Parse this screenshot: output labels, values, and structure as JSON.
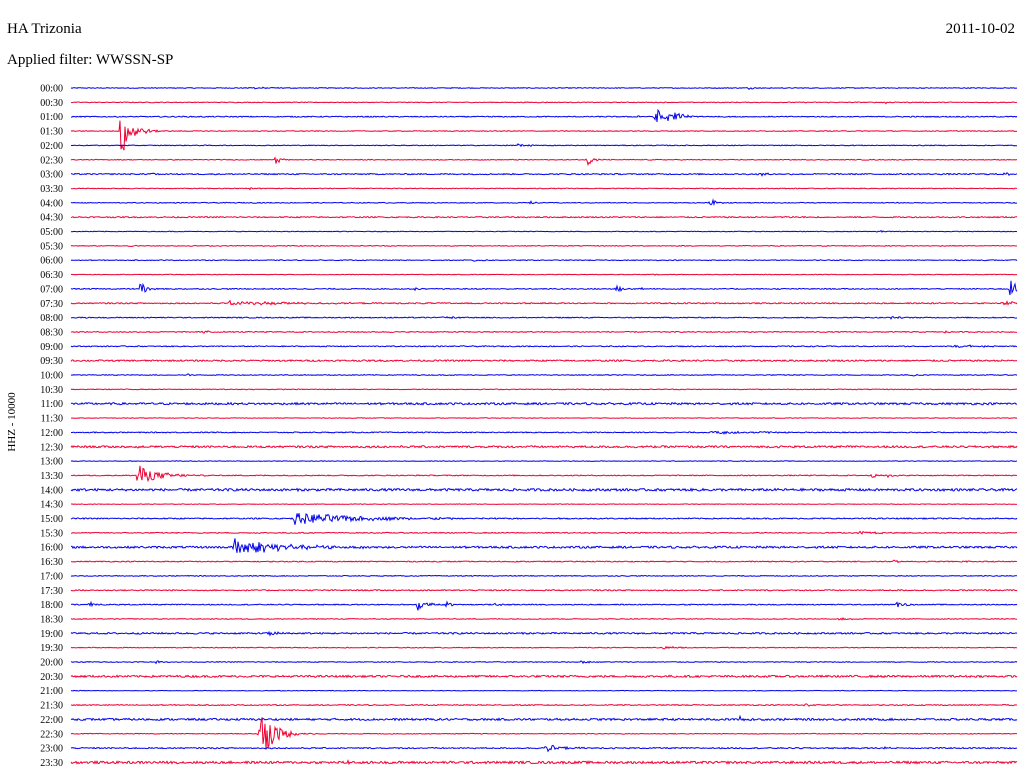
{
  "header": {
    "station": "HA Trizonia",
    "date": "2011-10-02",
    "filter": "Applied filter: WWSSN-SP"
  },
  "channel_label": "HHZ - 10000",
  "colors": {
    "trace_a": "#0000ee",
    "trace_b": "#ee0033",
    "text": "#000000"
  },
  "chart_data": {
    "type": "line",
    "title": "",
    "xlabel": "",
    "ylabel": "HHZ - 10000",
    "grid": false,
    "legend": "none",
    "x_range_minutes": [
      0,
      30
    ],
    "rows": [
      {
        "label": "00:00",
        "color": "blue",
        "noise": 0.4,
        "events": [
          {
            "t": 5.7,
            "amp": 1,
            "dur": 1.2
          },
          {
            "t": 21.5,
            "amp": 1,
            "dur": 0.3
          }
        ]
      },
      {
        "label": "00:30",
        "color": "red",
        "noise": 0.4,
        "events": [
          {
            "t": 25.8,
            "amp": 2,
            "dur": 0.2
          }
        ]
      },
      {
        "label": "01:00",
        "color": "blue",
        "noise": 0.5,
        "events": [
          {
            "t": 18.5,
            "amp": 8,
            "dur": 0.8
          },
          {
            "t": 18.9,
            "amp": 5,
            "dur": 0.6
          },
          {
            "t": 17.9,
            "amp": 2,
            "dur": 0.3
          }
        ]
      },
      {
        "label": "01:30",
        "color": "red",
        "noise": 0.4,
        "events": [
          {
            "t": 1.6,
            "amp": 28,
            "dur": 0.5
          }
        ]
      },
      {
        "label": "02:00",
        "color": "blue",
        "noise": 0.4,
        "events": [
          {
            "t": 14.1,
            "amp": 1.5,
            "dur": 0.8
          }
        ]
      },
      {
        "label": "02:30",
        "color": "red",
        "noise": 0.4,
        "events": [
          {
            "t": 6.5,
            "amp": 4,
            "dur": 0.3
          },
          {
            "t": 16.4,
            "amp": 5,
            "dur": 0.3
          }
        ]
      },
      {
        "label": "03:00",
        "color": "blue",
        "noise": 0.6,
        "events": [
          {
            "t": 2.5,
            "amp": 1.5,
            "dur": 0.3
          },
          {
            "t": 21.9,
            "amp": 2,
            "dur": 0.3
          },
          {
            "t": 29.6,
            "amp": 2,
            "dur": 0.3
          }
        ]
      },
      {
        "label": "03:30",
        "color": "red",
        "noise": 0.4,
        "events": [
          {
            "t": 5.7,
            "amp": 1.5,
            "dur": 0.2
          }
        ]
      },
      {
        "label": "04:00",
        "color": "blue",
        "noise": 0.4,
        "events": [
          {
            "t": 20.3,
            "amp": 3,
            "dur": 0.4
          },
          {
            "t": 14.6,
            "amp": 1.5,
            "dur": 0.2
          }
        ]
      },
      {
        "label": "04:30",
        "color": "red",
        "noise": 0.6,
        "events": [
          {
            "t": 22.6,
            "amp": 1,
            "dur": 0.5
          }
        ]
      },
      {
        "label": "05:00",
        "color": "blue",
        "noise": 0.3,
        "events": [
          {
            "t": 25.6,
            "amp": 2,
            "dur": 0.2
          }
        ]
      },
      {
        "label": "05:30",
        "color": "red",
        "noise": 0.4,
        "events": [
          {
            "t": 1.9,
            "amp": 1.5,
            "dur": 0.2
          }
        ]
      },
      {
        "label": "06:00",
        "color": "blue",
        "noise": 0.4,
        "events": [
          {
            "t": 12.8,
            "amp": 2,
            "dur": 0.3
          }
        ]
      },
      {
        "label": "06:30",
        "color": "red",
        "noise": 0.3,
        "events": [
          {
            "t": 18.4,
            "amp": 1.5,
            "dur": 0.2
          }
        ]
      },
      {
        "label": "07:00",
        "color": "blue",
        "noise": 0.5,
        "events": [
          {
            "t": 2.2,
            "amp": 8,
            "dur": 0.3
          },
          {
            "t": 10.9,
            "amp": 2,
            "dur": 0.3
          },
          {
            "t": 17.3,
            "amp": 5,
            "dur": 0.3
          },
          {
            "t": 18.1,
            "amp": 2,
            "dur": 0.2
          },
          {
            "t": 29.8,
            "amp": 9,
            "dur": 0.4
          }
        ]
      },
      {
        "label": "07:30",
        "color": "red",
        "noise": 0.6,
        "events": [
          {
            "t": 5.0,
            "amp": 2,
            "dur": 3.5
          },
          {
            "t": 29.6,
            "amp": 2,
            "dur": 1.2
          }
        ]
      },
      {
        "label": "08:00",
        "color": "blue",
        "noise": 0.5,
        "events": [
          {
            "t": 11.8,
            "amp": 1.5,
            "dur": 0.8
          },
          {
            "t": 26.0,
            "amp": 1.5,
            "dur": 0.3
          }
        ]
      },
      {
        "label": "08:30",
        "color": "red",
        "noise": 0.5,
        "events": [
          {
            "t": 4.2,
            "amp": 1.5,
            "dur": 0.6
          },
          {
            "t": 27.7,
            "amp": 1.5,
            "dur": 0.2
          }
        ]
      },
      {
        "label": "09:00",
        "color": "blue",
        "noise": 0.5,
        "events": [
          {
            "t": 28.0,
            "amp": 1.5,
            "dur": 1.5
          }
        ]
      },
      {
        "label": "09:30",
        "color": "red",
        "noise": 0.8,
        "events": []
      },
      {
        "label": "10:00",
        "color": "blue",
        "noise": 0.4,
        "events": [
          {
            "t": 3.7,
            "amp": 1.5,
            "dur": 0.2
          },
          {
            "t": 26.7,
            "amp": 1.5,
            "dur": 0.2
          }
        ]
      },
      {
        "label": "10:30",
        "color": "red",
        "noise": 0.4,
        "events": []
      },
      {
        "label": "11:00",
        "color": "blue",
        "noise": 1.0,
        "events": []
      },
      {
        "label": "11:30",
        "color": "red",
        "noise": 0.3,
        "events": []
      },
      {
        "label": "12:00",
        "color": "blue",
        "noise": 0.5,
        "events": [
          {
            "t": 20.3,
            "amp": 1.5,
            "dur": 2.8
          }
        ]
      },
      {
        "label": "12:30",
        "color": "red",
        "noise": 1.0,
        "events": [
          {
            "t": 1.9,
            "amp": 2,
            "dur": 0.3
          }
        ]
      },
      {
        "label": "13:00",
        "color": "blue",
        "noise": 0.3,
        "events": []
      },
      {
        "label": "13:30",
        "color": "red",
        "noise": 0.5,
        "events": [
          {
            "t": 2.1,
            "amp": 11,
            "dur": 1.0
          },
          {
            "t": 25.4,
            "amp": 2,
            "dur": 0.3
          },
          {
            "t": 25.9,
            "amp": 2,
            "dur": 0.2
          }
        ]
      },
      {
        "label": "14:00",
        "color": "blue",
        "noise": 1.2,
        "events": []
      },
      {
        "label": "14:30",
        "color": "red",
        "noise": 0.3,
        "events": []
      },
      {
        "label": "15:00",
        "color": "blue",
        "noise": 0.6,
        "events": [
          {
            "t": 7.1,
            "amp": 6,
            "dur": 3.5
          }
        ]
      },
      {
        "label": "15:30",
        "color": "red",
        "noise": 0.5,
        "events": [
          {
            "t": 25.0,
            "amp": 1.5,
            "dur": 1.0
          }
        ]
      },
      {
        "label": "16:00",
        "color": "blue",
        "noise": 1.0,
        "events": [
          {
            "t": 5.2,
            "amp": 9,
            "dur": 2.2
          }
        ]
      },
      {
        "label": "16:30",
        "color": "red",
        "noise": 0.5,
        "events": [
          {
            "t": 26.1,
            "amp": 2,
            "dur": 0.2
          },
          {
            "t": 28.4,
            "amp": 1.5,
            "dur": 0.2
          }
        ]
      },
      {
        "label": "17:00",
        "color": "blue",
        "noise": 0.4,
        "events": []
      },
      {
        "label": "17:30",
        "color": "red",
        "noise": 0.6,
        "events": []
      },
      {
        "label": "18:00",
        "color": "blue",
        "noise": 0.5,
        "events": [
          {
            "t": 0.6,
            "amp": 4,
            "dur": 0.3
          },
          {
            "t": 11.0,
            "amp": 6,
            "dur": 0.4
          },
          {
            "t": 11.9,
            "amp": 3,
            "dur": 0.3
          },
          {
            "t": 13.4,
            "amp": 2,
            "dur": 0.3
          },
          {
            "t": 26.2,
            "amp": 3,
            "dur": 0.4
          }
        ]
      },
      {
        "label": "18:30",
        "color": "red",
        "noise": 0.4,
        "events": [
          {
            "t": 24.4,
            "amp": 2,
            "dur": 0.3
          }
        ]
      },
      {
        "label": "19:00",
        "color": "blue",
        "noise": 0.8,
        "events": [
          {
            "t": 6.3,
            "amp": 3,
            "dur": 0.3
          }
        ]
      },
      {
        "label": "19:30",
        "color": "red",
        "noise": 0.4,
        "events": [
          {
            "t": 18.8,
            "amp": 1.5,
            "dur": 0.8
          }
        ]
      },
      {
        "label": "20:00",
        "color": "blue",
        "noise": 0.4,
        "events": [
          {
            "t": 2.7,
            "amp": 1.5,
            "dur": 0.3
          },
          {
            "t": 16.2,
            "amp": 2,
            "dur": 0.3
          }
        ]
      },
      {
        "label": "20:30",
        "color": "red",
        "noise": 1.0,
        "events": []
      },
      {
        "label": "21:00",
        "color": "blue",
        "noise": 0.3,
        "events": []
      },
      {
        "label": "21:30",
        "color": "red",
        "noise": 0.5,
        "events": [
          {
            "t": 23.3,
            "amp": 2,
            "dur": 0.4
          },
          {
            "t": 29.5,
            "amp": 1.5,
            "dur": 0.6
          }
        ]
      },
      {
        "label": "22:00",
        "color": "blue",
        "noise": 1.0,
        "events": [
          {
            "t": 21.2,
            "amp": 3,
            "dur": 0.2
          }
        ]
      },
      {
        "label": "22:30",
        "color": "red",
        "noise": 0.4,
        "events": [
          {
            "t": 6.0,
            "amp": 26,
            "dur": 0.7
          }
        ]
      },
      {
        "label": "23:00",
        "color": "blue",
        "noise": 0.6,
        "events": [
          {
            "t": 15.0,
            "amp": 4,
            "dur": 0.8
          },
          {
            "t": 25.8,
            "amp": 2,
            "dur": 0.2
          }
        ]
      },
      {
        "label": "23:30",
        "color": "red",
        "noise": 1.2,
        "events": [
          {
            "t": 8.8,
            "amp": 2,
            "dur": 0.2
          }
        ]
      }
    ]
  }
}
